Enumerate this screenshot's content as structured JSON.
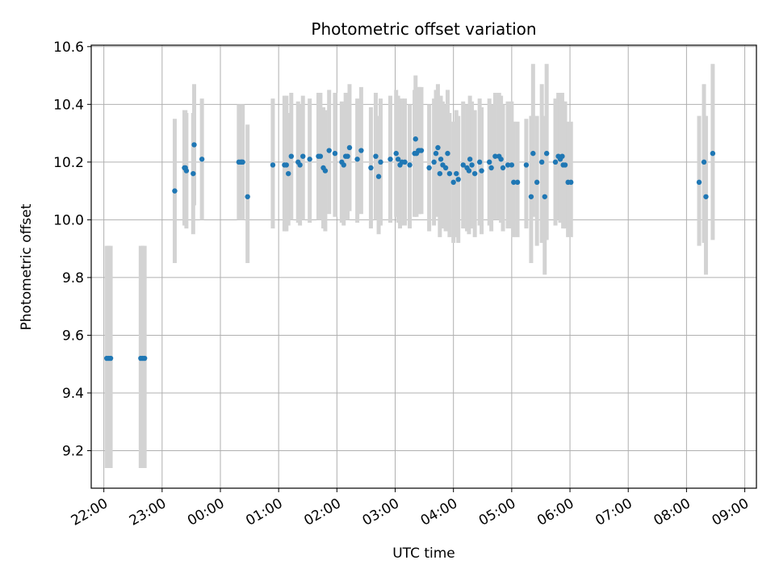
{
  "chart_data": {
    "type": "scatter",
    "title": "Photometric offset variation",
    "xlabel": "UTC time",
    "ylabel": "Photometric offset",
    "x_unit": "UTC",
    "xlim": [
      "21:47",
      "09:12"
    ],
    "ylim": [
      9.07,
      10.605
    ],
    "grid": true,
    "x_ticks": [
      "22:00",
      "23:00",
      "00:00",
      "01:00",
      "02:00",
      "03:00",
      "04:00",
      "05:00",
      "06:00",
      "07:00",
      "08:00",
      "09:00"
    ],
    "y_ticks": [
      "9.2",
      "9.4",
      "9.6",
      "9.8",
      "10.0",
      "10.2",
      "10.4",
      "10.6"
    ],
    "point_color": "#1f77b4",
    "errorbar_color": "#d3d3d3",
    "series": [
      {
        "x": [
          "22:03",
          "22:05",
          "22:07",
          "22:38",
          "22:40",
          "22:42",
          "23:13",
          "23:23",
          "23:24",
          "23:25",
          "23:32",
          "23:33",
          "23:41",
          "00:19",
          "00:21",
          "00:22",
          "00:23",
          "00:28",
          "00:54",
          "01:06",
          "01:08",
          "01:10",
          "01:13",
          "01:20",
          "01:22",
          "01:25",
          "01:32",
          "01:41",
          "01:43",
          "01:46",
          "01:48",
          "01:52",
          "01:58",
          "02:05",
          "02:07",
          "02:09",
          "02:11",
          "02:13",
          "02:21",
          "02:25",
          "02:35",
          "02:40",
          "02:43",
          "02:45",
          "02:55",
          "03:01",
          "03:03",
          "03:05",
          "03:07",
          "03:10",
          "03:15",
          "03:20",
          "03:21",
          "03:22",
          "03:24",
          "03:25",
          "03:27",
          "03:35",
          "03:40",
          "03:42",
          "03:44",
          "03:46",
          "03:47",
          "03:49",
          "03:52",
          "03:54",
          "03:56",
          "04:00",
          "04:03",
          "04:05",
          "04:10",
          "04:14",
          "04:16",
          "04:17",
          "04:19",
          "04:22",
          "04:27",
          "04:29",
          "04:37",
          "04:39",
          "04:43",
          "04:47",
          "04:49",
          "04:51",
          "04:56",
          "05:00",
          "05:02",
          "05:06",
          "05:15",
          "05:20",
          "05:22",
          "05:26",
          "05:31",
          "05:34",
          "05:36",
          "05:45",
          "05:48",
          "05:50",
          "05:52",
          "05:53",
          "05:55",
          "05:58",
          "06:01",
          "08:13",
          "08:18",
          "08:20",
          "08:27"
        ],
        "y": [
          9.52,
          9.52,
          9.52,
          9.52,
          9.52,
          9.52,
          10.1,
          10.18,
          10.18,
          10.17,
          10.16,
          10.26,
          10.21,
          10.2,
          10.2,
          10.2,
          10.2,
          10.08,
          10.19,
          10.19,
          10.19,
          10.16,
          10.22,
          10.2,
          10.19,
          10.22,
          10.21,
          10.22,
          10.22,
          10.18,
          10.17,
          10.24,
          10.23,
          10.2,
          10.19,
          10.22,
          10.22,
          10.25,
          10.21,
          10.24,
          10.18,
          10.22,
          10.15,
          10.2,
          10.21,
          10.23,
          10.21,
          10.19,
          10.2,
          10.2,
          10.19,
          10.23,
          10.28,
          10.23,
          10.24,
          10.24,
          10.24,
          10.18,
          10.2,
          10.23,
          10.25,
          10.16,
          10.21,
          10.19,
          10.18,
          10.23,
          10.16,
          10.13,
          10.16,
          10.14,
          10.19,
          10.18,
          10.17,
          10.21,
          10.19,
          10.16,
          10.2,
          10.17,
          10.2,
          10.18,
          10.22,
          10.22,
          10.21,
          10.18,
          10.19,
          10.19,
          10.13,
          10.13,
          10.19,
          10.08,
          10.23,
          10.13,
          10.2,
          10.08,
          10.23,
          10.2,
          10.22,
          10.21,
          10.22,
          10.19,
          10.19,
          10.13,
          10.13,
          10.13,
          10.2,
          10.08,
          10.23
        ],
        "err_low": [
          9.14,
          9.14,
          9.14,
          9.14,
          9.14,
          9.14,
          9.85,
          9.98,
          9.98,
          9.97,
          9.95,
          10.05,
          10.0,
          10.0,
          10.0,
          10.0,
          10.0,
          9.85,
          9.97,
          9.96,
          9.96,
          9.98,
          10.0,
          9.99,
          9.98,
          10.0,
          9.99,
          10.0,
          10.0,
          9.97,
          9.96,
          10.02,
          10.01,
          9.99,
          9.98,
          10.0,
          10.0,
          10.03,
          9.99,
          10.02,
          9.97,
          10.0,
          9.95,
          9.98,
          9.99,
          10.01,
          9.99,
          9.97,
          9.98,
          9.98,
          9.97,
          10.01,
          10.05,
          10.01,
          10.02,
          10.02,
          10.02,
          9.96,
          9.98,
          10.01,
          10.03,
          9.94,
          9.99,
          9.97,
          9.96,
          10.01,
          9.94,
          9.92,
          9.94,
          9.92,
          9.97,
          9.96,
          9.95,
          9.99,
          9.97,
          9.94,
          9.98,
          9.95,
          9.98,
          9.96,
          10.0,
          10.0,
          9.99,
          9.96,
          9.97,
          9.97,
          9.94,
          9.94,
          9.97,
          9.85,
          10.01,
          9.91,
          9.92,
          9.81,
          9.93,
          9.98,
          10.0,
          9.99,
          10.0,
          9.97,
          9.97,
          9.94,
          9.94,
          9.91,
          9.92,
          9.81,
          9.93
        ],
        "err_high": [
          9.91,
          9.91,
          9.91,
          9.91,
          9.91,
          9.91,
          10.35,
          10.38,
          10.38,
          10.37,
          10.37,
          10.47,
          10.42,
          10.4,
          10.4,
          10.4,
          10.4,
          10.33,
          10.42,
          10.43,
          10.43,
          10.37,
          10.44,
          10.41,
          10.4,
          10.43,
          10.42,
          10.44,
          10.44,
          10.39,
          10.38,
          10.45,
          10.44,
          10.41,
          10.4,
          10.44,
          10.44,
          10.47,
          10.42,
          10.46,
          10.39,
          10.44,
          10.36,
          10.42,
          10.43,
          10.45,
          10.43,
          10.41,
          10.42,
          10.42,
          10.4,
          10.45,
          10.5,
          10.45,
          10.46,
          10.46,
          10.46,
          10.4,
          10.42,
          10.45,
          10.47,
          10.38,
          10.43,
          10.41,
          10.4,
          10.45,
          10.37,
          10.34,
          10.38,
          10.36,
          10.41,
          10.4,
          10.39,
          10.43,
          10.41,
          10.38,
          10.42,
          10.39,
          10.42,
          10.4,
          10.44,
          10.44,
          10.43,
          10.4,
          10.41,
          10.41,
          10.34,
          10.34,
          10.35,
          10.36,
          10.54,
          10.36,
          10.47,
          10.36,
          10.54,
          10.42,
          10.44,
          10.43,
          10.44,
          10.41,
          10.41,
          10.34,
          10.34,
          10.36,
          10.47,
          10.36,
          10.54
        ]
      }
    ]
  }
}
